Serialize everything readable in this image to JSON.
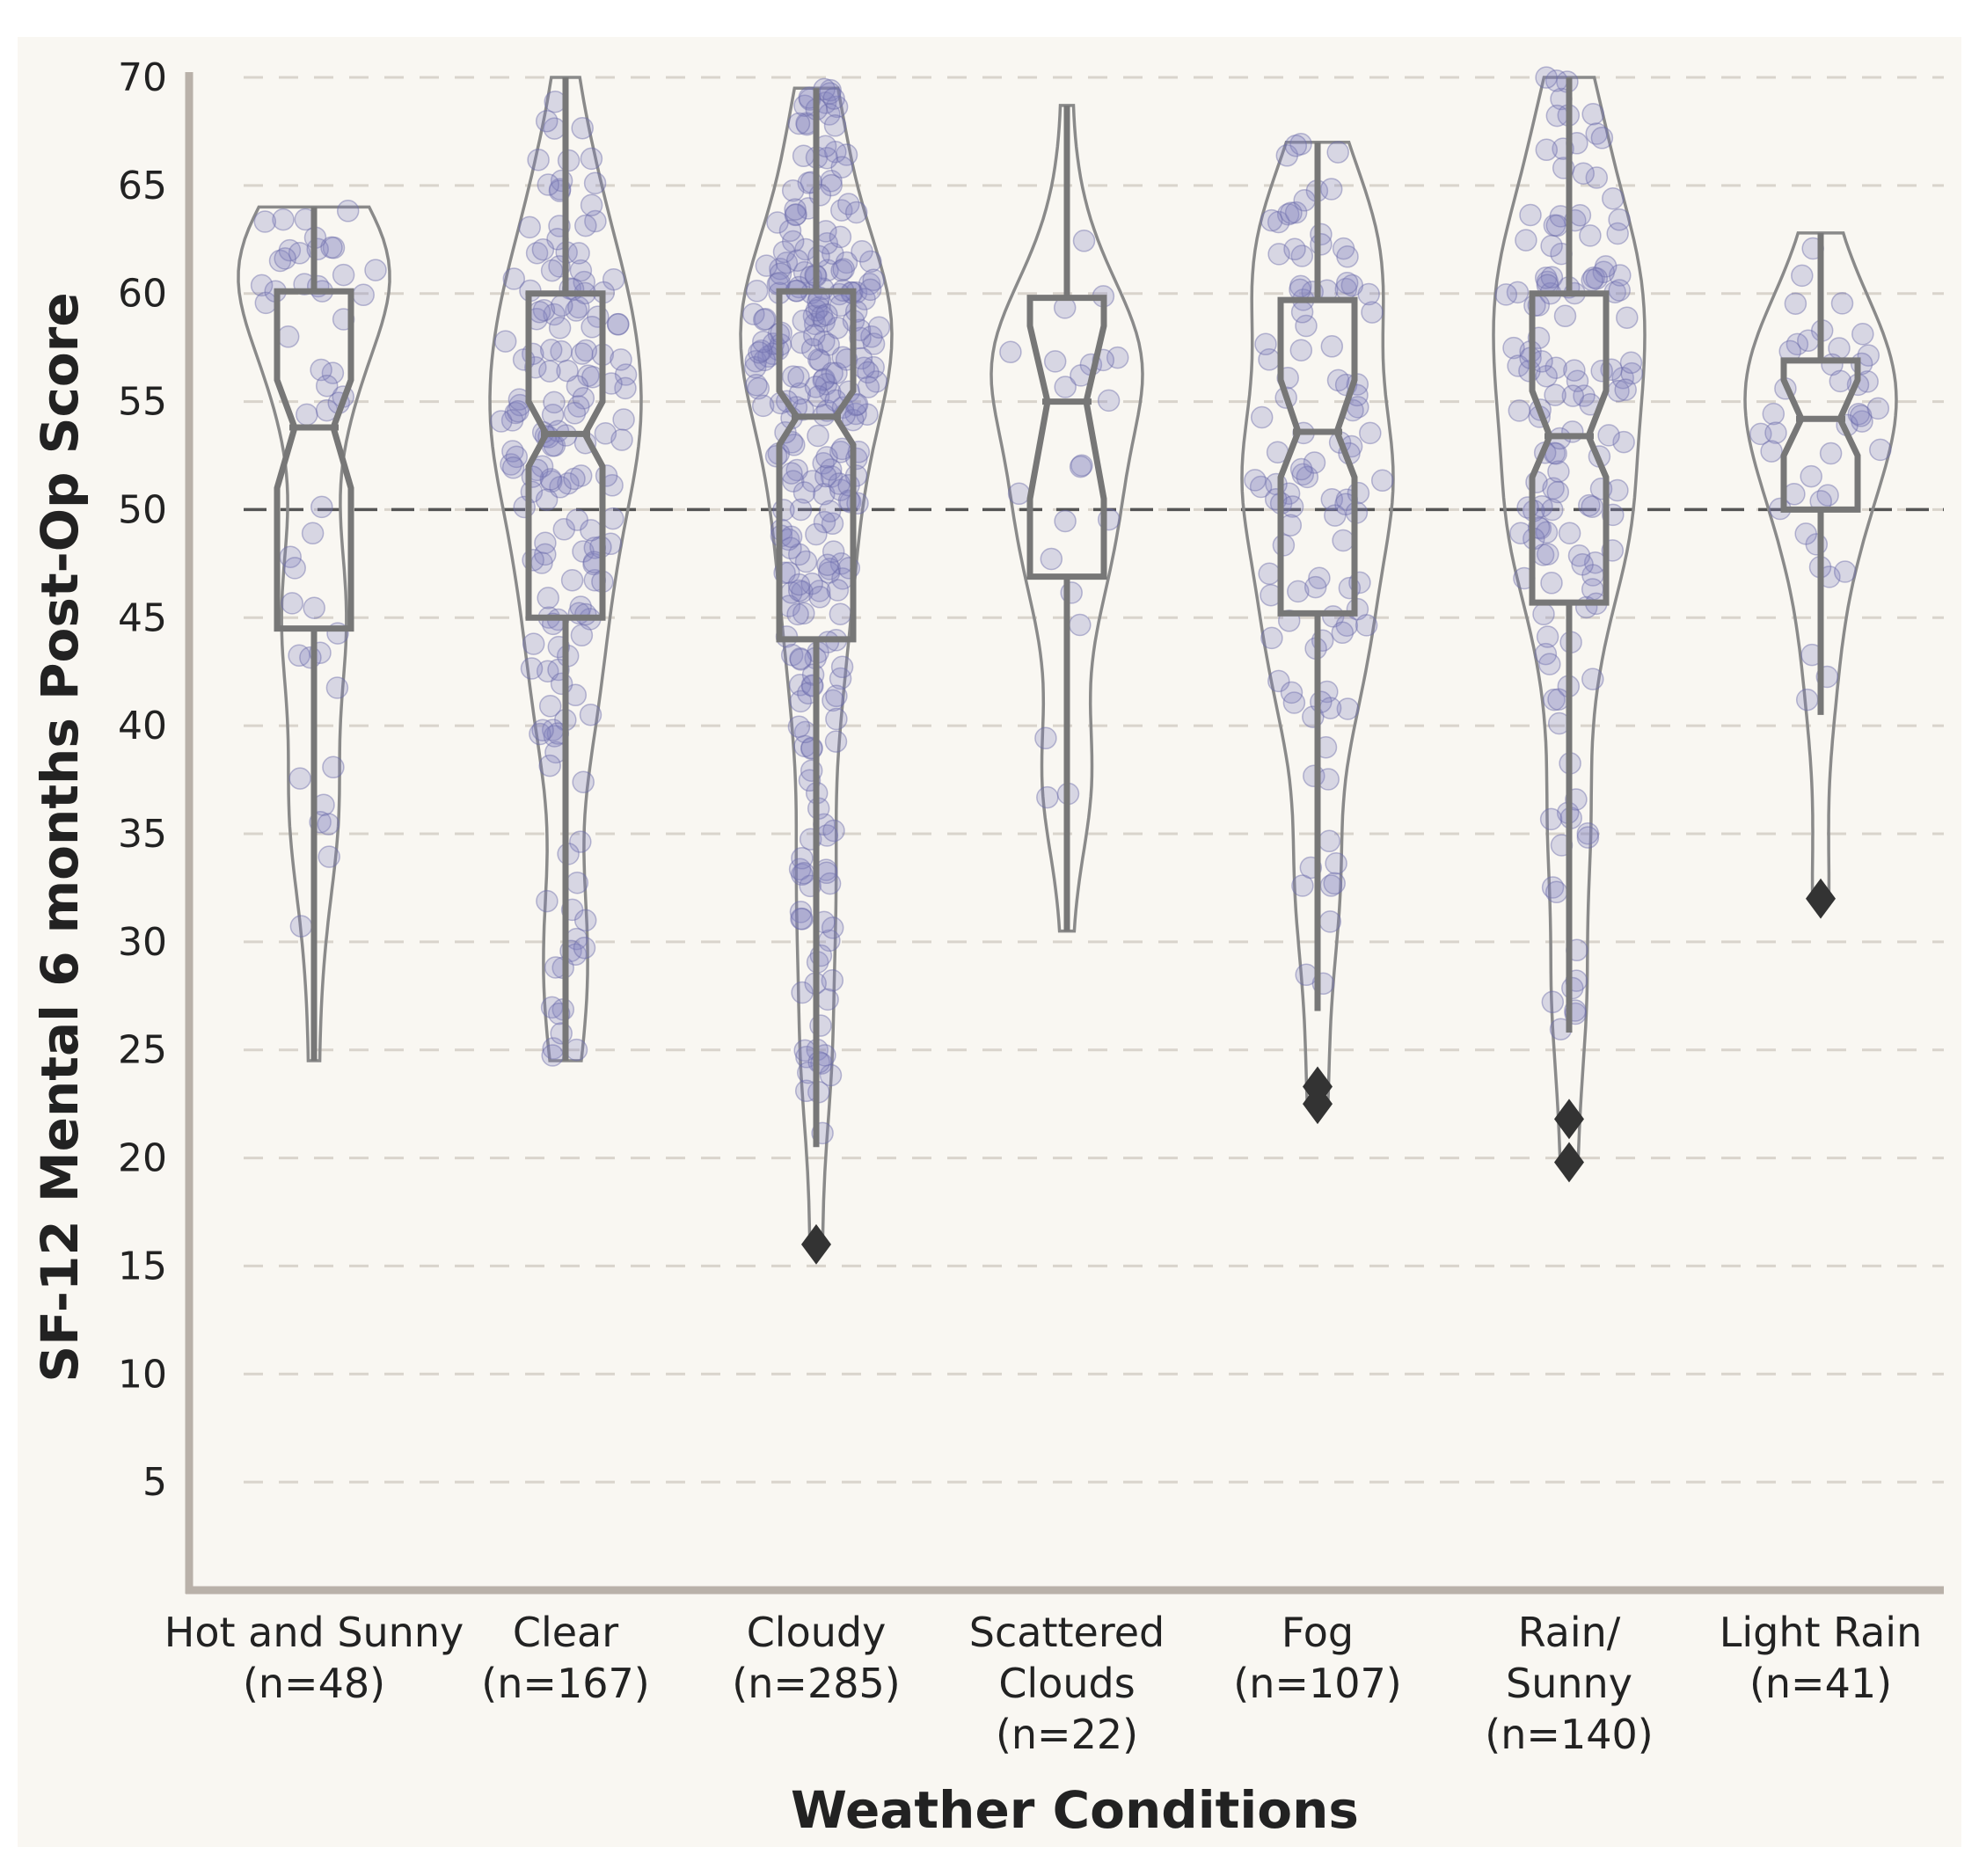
{
  "chart_data": {
    "type": "violin",
    "title": "",
    "xlabel": "Weather Conditions",
    "ylabel": "SF-12 Mental 6 months Post-Op Score",
    "ylim": [
      0,
      70
    ],
    "yticks": [
      5,
      10,
      15,
      20,
      25,
      30,
      35,
      40,
      45,
      50,
      55,
      60,
      65,
      70
    ],
    "reference_line": 50,
    "grid": "horizontal dashed",
    "colors": {
      "background": "#f9f7f2",
      "axis": "#b9b1a9",
      "grid": "#d9d4cc",
      "violin": "#8a8a8a",
      "box": "#777777",
      "points": "#8080c0",
      "outliers": "#333333",
      "reference": "#555555"
    },
    "categories": [
      {
        "line1": "Hot and Sunny",
        "line2": "(n=48)",
        "line3": "",
        "n": 48,
        "q1": 44.5,
        "median": 53.8,
        "q3": 60.1,
        "whisker_low": 24.5,
        "whisker_high": 64.0,
        "notch": [
          51.0,
          56.0
        ],
        "min": 24.5,
        "max": 64.0,
        "outliers": []
      },
      {
        "line1": "Clear",
        "line2": "(n=167)",
        "line3": "",
        "n": 167,
        "q1": 45.0,
        "median": 53.5,
        "q3": 60.0,
        "whisker_low": 24.5,
        "whisker_high": 70.0,
        "notch": [
          52.0,
          55.0
        ],
        "min": 24.5,
        "max": 70.0,
        "outliers": []
      },
      {
        "line1": "Cloudy",
        "line2": "(n=285)",
        "line3": "",
        "n": 285,
        "q1": 44.0,
        "median": 54.3,
        "q3": 60.1,
        "whisker_low": 20.5,
        "whisker_high": 69.5,
        "notch": [
          53.0,
          55.5
        ],
        "min": 16.0,
        "max": 69.5,
        "outliers": [
          16.0
        ]
      },
      {
        "line1": "Scattered",
        "line2": "Clouds",
        "line3": "(n=22)",
        "n": 22,
        "q1": 46.9,
        "median": 55.0,
        "q3": 59.8,
        "whisker_low": 30.5,
        "whisker_high": 68.7,
        "notch": [
          50.5,
          58.5
        ],
        "min": 30.5,
        "max": 68.7,
        "outliers": []
      },
      {
        "line1": "Fog",
        "line2": "(n=107)",
        "line3": "",
        "n": 107,
        "q1": 45.2,
        "median": 53.6,
        "q3": 59.7,
        "whisker_low": 26.8,
        "whisker_high": 67.0,
        "notch": [
          51.5,
          56.0
        ],
        "min": 22.5,
        "max": 67.0,
        "outliers": [
          23.3,
          22.5
        ]
      },
      {
        "line1": "Rain/",
        "line2": "Sunny",
        "line3": "(n=140)",
        "n": 140,
        "q1": 45.7,
        "median": 53.4,
        "q3": 60.0,
        "whisker_low": 25.8,
        "whisker_high": 70.0,
        "notch": [
          51.5,
          55.5
        ],
        "min": 19.8,
        "max": 70.0,
        "outliers": [
          21.8,
          19.8
        ]
      },
      {
        "line1": "Light Rain",
        "line2": "(n=41)",
        "line3": "",
        "n": 41,
        "q1": 50.0,
        "median": 54.2,
        "q3": 56.9,
        "whisker_low": 40.5,
        "whisker_high": 62.8,
        "notch": [
          52.5,
          56.0
        ],
        "min": 32.0,
        "max": 62.8,
        "outliers": [
          32.0
        ]
      }
    ]
  }
}
